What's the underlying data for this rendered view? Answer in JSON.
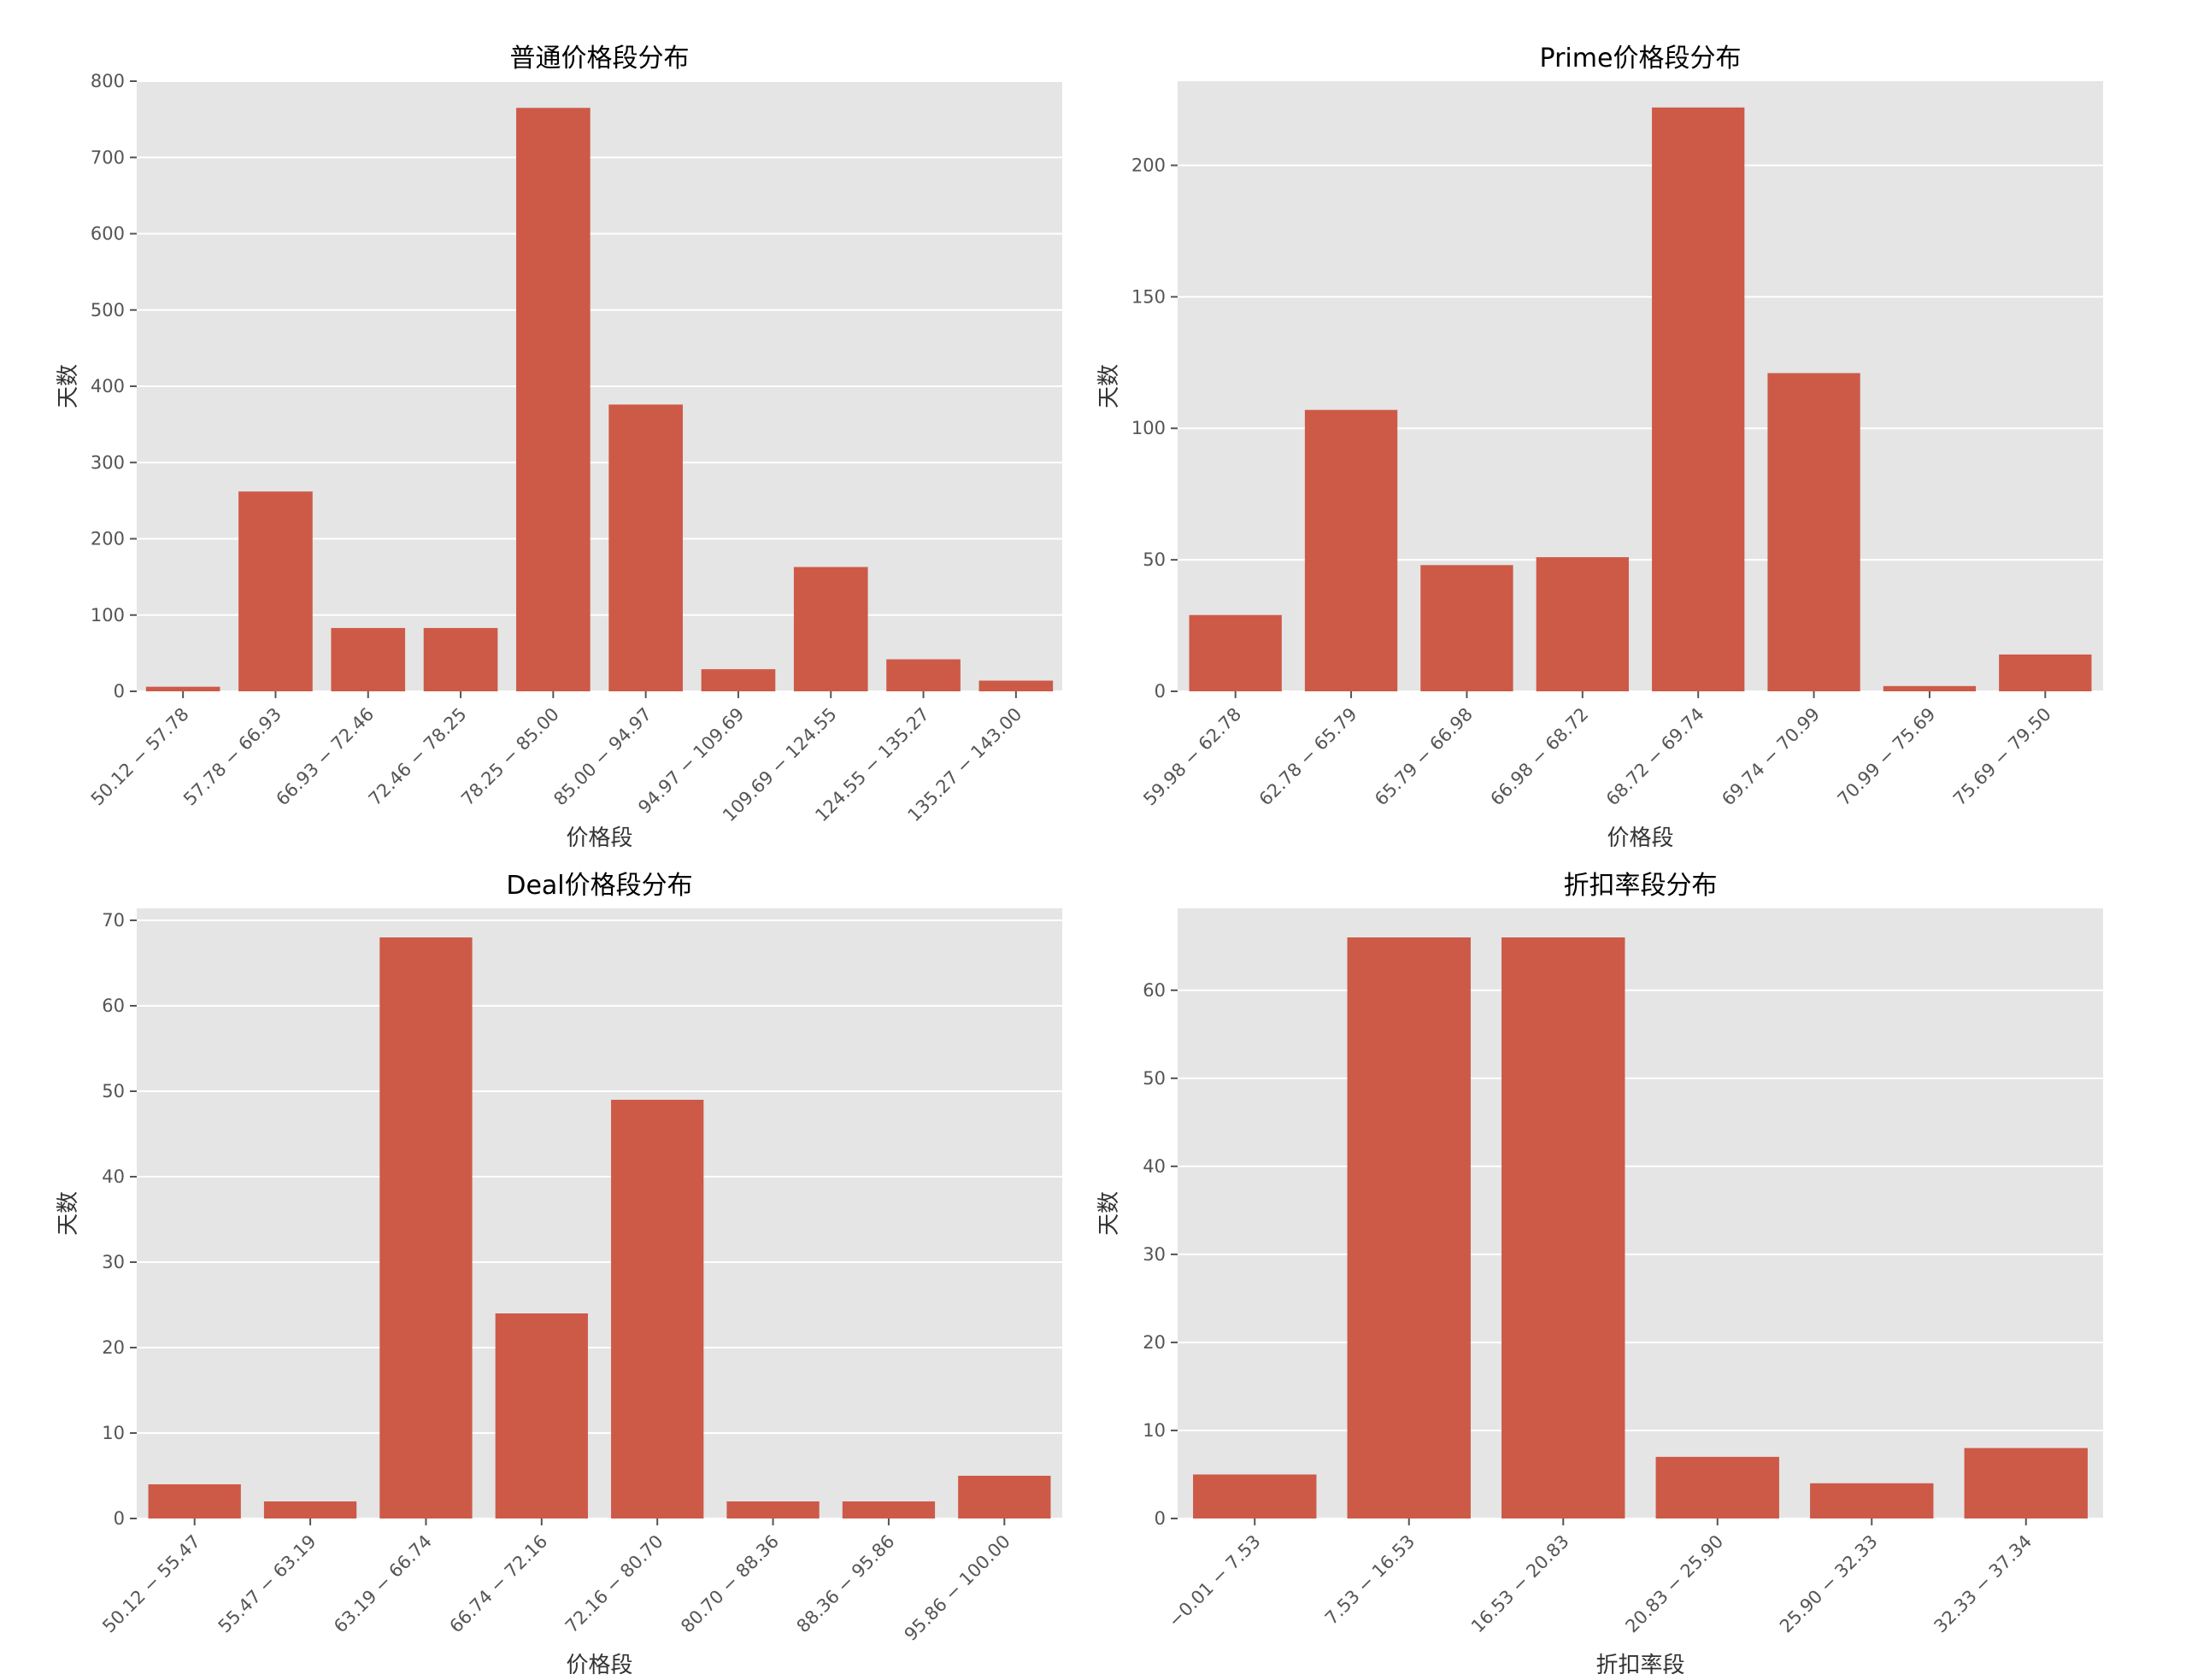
{
  "colors": {
    "bar": "#cd5a47",
    "plot_bg": "#e5e5e5",
    "grid": "#ffffff",
    "text": "#333333"
  },
  "chart_data": [
    {
      "type": "bar",
      "title": "普通价格段分布",
      "xlabel": "价格段",
      "ylabel": "天数",
      "ylim": [
        0,
        800
      ],
      "yticks": [
        0,
        100,
        200,
        300,
        400,
        500,
        600,
        700,
        800
      ],
      "grid": true,
      "categories": [
        "50.12 − 57.78",
        "57.78 − 66.93",
        "66.93 − 72.46",
        "72.46 − 78.25",
        "78.25 − 85.00",
        "85.00 − 94.97",
        "94.97 − 109.69",
        "109.69 − 124.55",
        "124.55 − 135.27",
        "135.27 − 143.00"
      ],
      "values": [
        6,
        262,
        83,
        83,
        765,
        376,
        29,
        163,
        42,
        14
      ]
    },
    {
      "type": "bar",
      "title": "Prime价格段分布",
      "xlabel": "价格段",
      "ylabel": "天数",
      "ylim": [
        0,
        232
      ],
      "yticks": [
        0,
        50,
        100,
        150,
        200
      ],
      "grid": true,
      "categories": [
        "59.98 − 62.78",
        "62.78 − 65.79",
        "65.79 − 66.98",
        "66.98 − 68.72",
        "68.72 − 69.74",
        "69.74 − 70.99",
        "70.99 − 75.69",
        "75.69 − 79.50"
      ],
      "values": [
        29,
        107,
        48,
        51,
        222,
        121,
        2,
        14
      ]
    },
    {
      "type": "bar",
      "title": "Deal价格段分布",
      "xlabel": "价格段",
      "ylabel": "天数",
      "ylim": [
        0,
        71.4
      ],
      "yticks": [
        0,
        10,
        20,
        30,
        40,
        50,
        60,
        70
      ],
      "grid": true,
      "categories": [
        "50.12 − 55.47",
        "55.47 − 63.19",
        "63.19 − 66.74",
        "66.74 − 72.16",
        "72.16 − 80.70",
        "80.70 − 88.36",
        "88.36 − 95.86",
        "95.86 − 100.00"
      ],
      "values": [
        4,
        2,
        68,
        24,
        49,
        2,
        2,
        5
      ]
    },
    {
      "type": "bar",
      "title": "折扣率段分布",
      "xlabel": "折扣率段",
      "ylabel": "天数",
      "ylim": [
        0,
        69.3
      ],
      "yticks": [
        0,
        10,
        20,
        30,
        40,
        50,
        60
      ],
      "grid": true,
      "categories": [
        "−0.01 − 7.53",
        "7.53 − 16.53",
        "16.53 − 20.83",
        "20.83 − 25.90",
        "25.90 − 32.33",
        "32.33 − 37.34"
      ],
      "values": [
        5,
        66,
        66,
        7,
        4,
        8
      ]
    }
  ]
}
